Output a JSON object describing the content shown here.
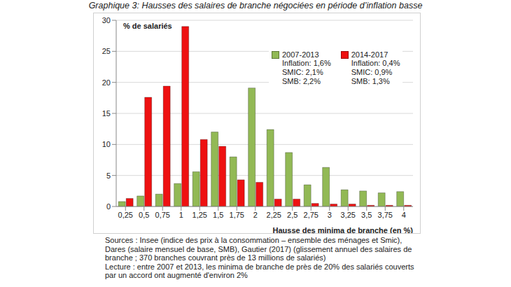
{
  "chart_data": {
    "type": "bar",
    "title": "Graphique 3: Hausses des salaires de branche négociées en période d’inflation basse",
    "y_label": "% de salariés",
    "x_label": "Hausse des minima de branche (en %)",
    "categories": [
      "0,25",
      "0,5",
      "0,75",
      "1",
      "1,25",
      "1,5",
      "1,75",
      "2",
      "2,25",
      "2,5",
      "2,75",
      "3",
      "3,25",
      "3,5",
      "3,75",
      "4"
    ],
    "series": [
      {
        "name": "2007-2013",
        "color": "#92b955",
        "notes": [
          "Inflation: 1,6%",
          "SMIC: 2,1%",
          "SMB: 2,2%"
        ],
        "values": [
          0.8,
          1.7,
          2.0,
          3.7,
          5.6,
          12.0,
          8.0,
          19.1,
          12.4,
          8.7,
          3.5,
          6.3,
          2.7,
          2.5,
          2.2,
          2.4
        ]
      },
      {
        "name": "2014-2017",
        "color": "#ee1111",
        "notes": [
          "Inflation: 0,4%",
          "SMIC: 0,9%",
          "SMB: 1,3%"
        ],
        "values": [
          1.3,
          17.6,
          19.4,
          29.0,
          10.8,
          9.7,
          4.3,
          3.9,
          1.2,
          1.2,
          0.5,
          0.4,
          0.4,
          0.2,
          0.2,
          0.2
        ]
      }
    ],
    "ylim": [
      0,
      30
    ],
    "yticks": [
      0,
      5,
      10,
      15,
      20,
      25,
      30
    ],
    "grid": true,
    "legend": "top-right",
    "notes": [
      "Sources : Insee (indice des prix à la consommation – ensemble des ménages et Smic), Dares (salaire mensuel de base, SMB), Gautier (2017) (glissement annuel des salaires de branche ; 370 branches couvrant près de 13 millions de salariés)",
      "Lecture : entre 2007 et 2013, les minima de branche de près de 20% des salariés couverts par un accord ont augmenté d'environ 2%"
    ]
  }
}
